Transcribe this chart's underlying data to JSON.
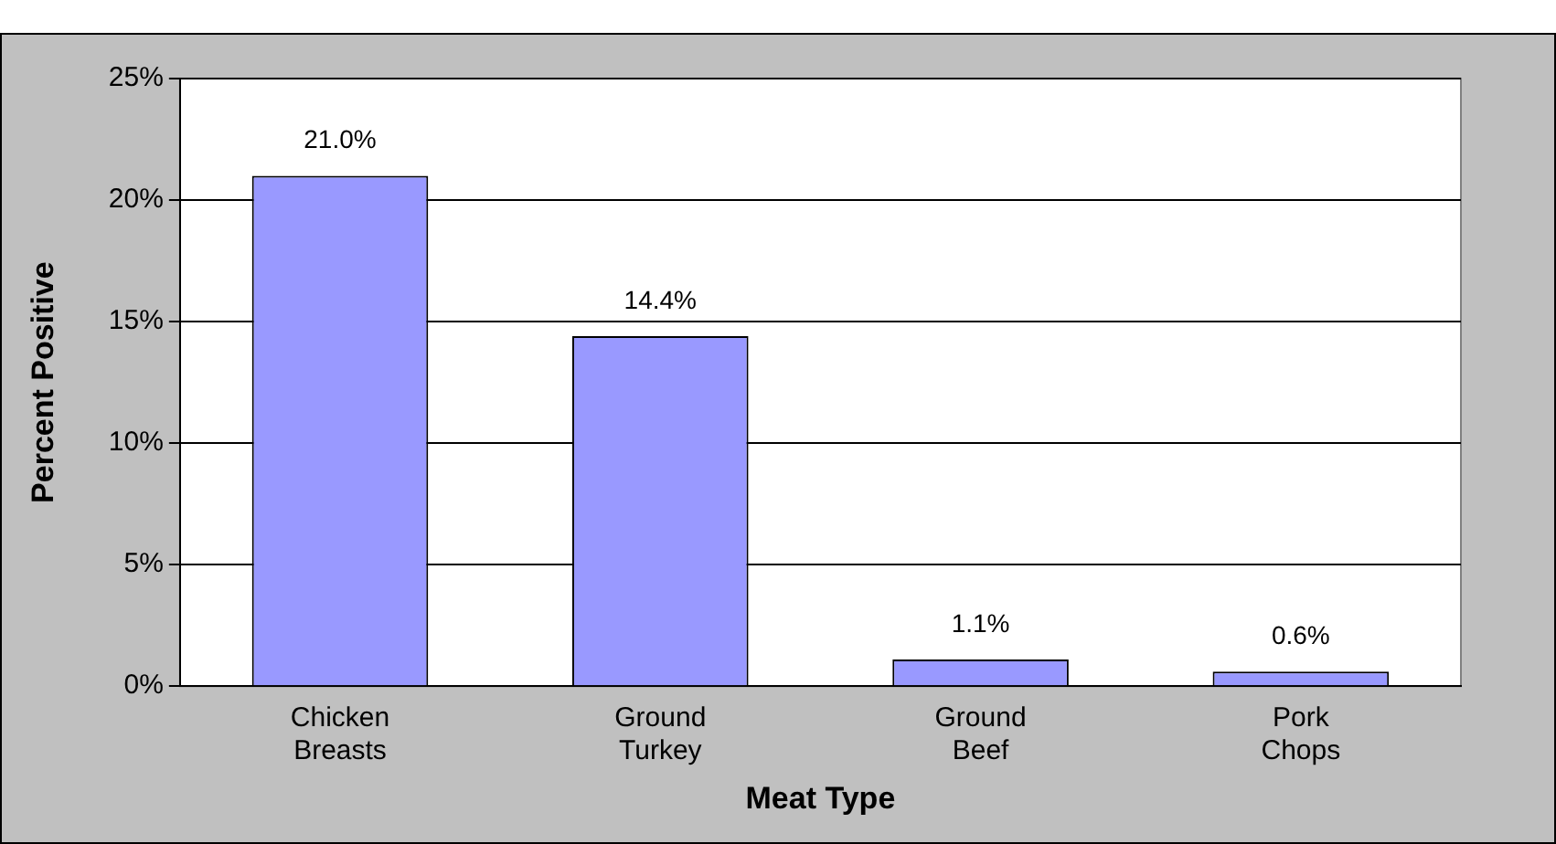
{
  "chart_data": {
    "type": "bar",
    "xlabel": "Meat Type",
    "ylabel": "Percent Positive",
    "categories": [
      "Chicken Breasts",
      "Ground Turkey",
      "Ground Beef",
      "Pork Chops"
    ],
    "values": [
      21.0,
      14.4,
      1.1,
      0.6
    ],
    "color": "#9999ff",
    "value_labels": [
      "21.0%",
      "14.4%",
      "1.1%",
      "0.6%"
    ],
    "ylim": [
      0,
      25
    ],
    "yticks": [
      {
        "value": 0,
        "label": "0%"
      },
      {
        "value": 5,
        "label": "5%"
      },
      {
        "value": 10,
        "label": "10%"
      },
      {
        "value": 15,
        "label": "15%"
      },
      {
        "value": 20,
        "label": "20%"
      },
      {
        "value": 25,
        "label": "25%"
      }
    ],
    "grid": "y"
  }
}
